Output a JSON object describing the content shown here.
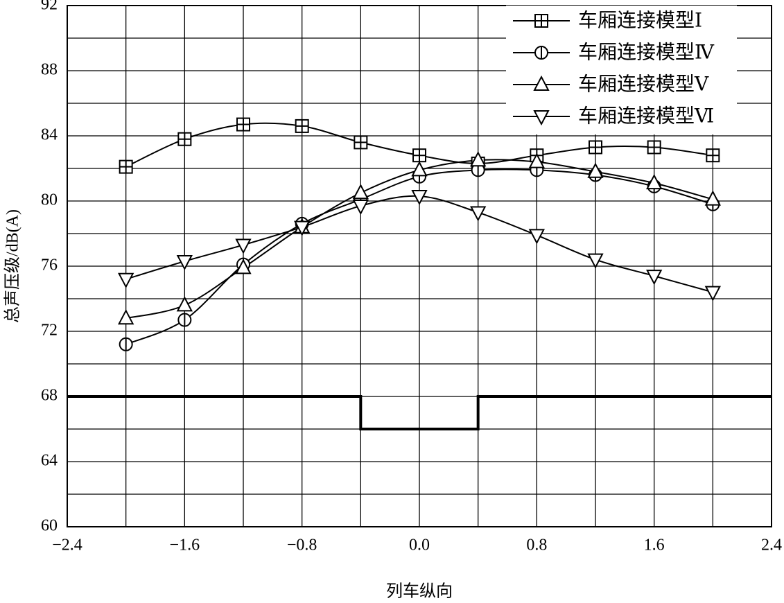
{
  "chart_data": {
    "type": "line",
    "x_label": "列车纵向",
    "y_label": "总声压级/dB(A)",
    "x": [
      -2.0,
      -1.6,
      -1.2,
      -0.8,
      -0.4,
      0,
      0.4,
      0.8,
      1.2,
      1.6,
      2.0
    ],
    "series": [
      {
        "name": "车厢连接模型Ⅰ",
        "color": "#000000",
        "marker": "square",
        "values": [
          82.1,
          83.8,
          84.7,
          84.6,
          83.6,
          82.8,
          82.3,
          82.8,
          83.3,
          83.3,
          82.8
        ]
      },
      {
        "name": "车厢连接模型Ⅳ",
        "color": "#000000",
        "marker": "circle",
        "values": [
          71.2,
          72.7,
          76.1,
          78.6,
          80.1,
          81.5,
          81.9,
          81.9,
          81.6,
          80.9,
          79.8
        ]
      },
      {
        "name": "车厢连接模型Ⅴ",
        "color": "#000000",
        "marker": "triangle-up",
        "values": [
          72.8,
          73.6,
          75.9,
          78.4,
          80.5,
          81.9,
          82.5,
          82.4,
          81.8,
          81.1,
          80.1
        ]
      },
      {
        "name": "车厢连接模型Ⅵ",
        "color": "#000000",
        "marker": "triangle-down",
        "values": [
          75.2,
          76.3,
          77.3,
          78.4,
          79.7,
          80.3,
          79.3,
          77.9,
          76.4,
          75.4,
          74.4
        ]
      }
    ],
    "outline": {
      "x": [
        -2.4,
        -0.4,
        -0.4,
        0.4,
        0.4,
        2.4
      ],
      "values": [
        68,
        68,
        66,
        66,
        68,
        68
      ],
      "color": "#000000"
    },
    "xlim": [
      -2.4,
      2.4
    ],
    "xticks": [
      {
        "value": -2.4,
        "label": "−2.4"
      },
      {
        "value": -1.6,
        "label": "−1.6"
      },
      {
        "value": -0.8,
        "label": "−0.8"
      },
      {
        "value": 0,
        "label": "0.0"
      },
      0.8,
      1.6,
      2.4
    ],
    "x_minor_grid": [
      -2.0,
      -1.2,
      -0.4,
      0.4,
      1.2,
      2.0
    ],
    "ylim": [
      60,
      92
    ],
    "yticks": [
      60,
      64,
      68,
      72,
      76,
      80,
      84,
      88,
      92
    ],
    "y_minor_grid": [
      62,
      66,
      70,
      74,
      78,
      82,
      86,
      90
    ],
    "grid": true,
    "legend": "top-right"
  }
}
